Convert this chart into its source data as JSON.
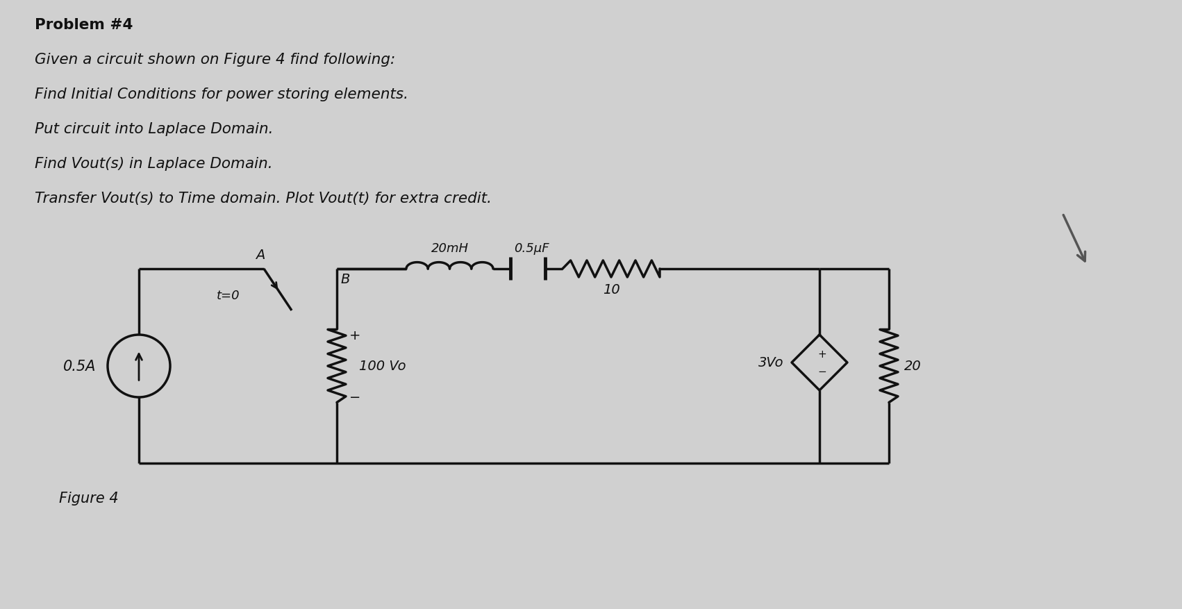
{
  "bg_color": "#d0d0d0",
  "text_color": "#111111",
  "line_color": "#111111",
  "title_lines": [
    "Problem #4",
    "Given a circuit shown on Figure 4 find following:",
    "Find Initial Conditions for power storing elements.",
    "Put circuit into Laplace Domain.",
    "Find Vout(s) in Laplace Domain.",
    "Transfer Vout(s) to Time domain. Plot Vout(t) for extra credit."
  ],
  "figure_label": "Figure 4",
  "cs_label": "0.5A",
  "res100_label": "100 Vo",
  "inductor_label": "20mH",
  "cap_label": "0.5μF",
  "res10_label": "10",
  "dep_label": "3Vo",
  "res20_label": "20",
  "switch_label": "t=0",
  "node_a": "A",
  "node_b": "B",
  "plus": "+",
  "minus": "−"
}
